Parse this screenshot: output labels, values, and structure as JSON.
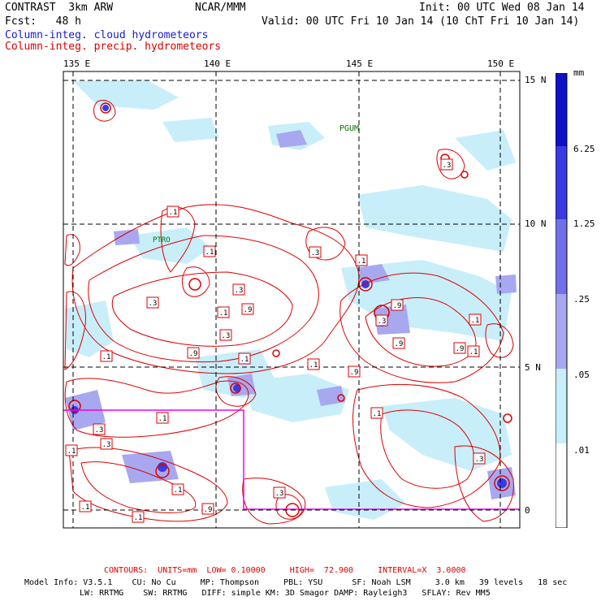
{
  "header": {
    "model": "CONTRAST  3km ARW",
    "org": "NCAR/MMM",
    "init": "Init: 00 UTC Wed 08 Jan 14",
    "fcst": "Fcst:   48 h",
    "valid": "Valid: 00 UTC Fri 10 Jan 14 (10 ChT Fri 10 Jan 14)",
    "field_blue": "Column-integ. cloud hydrometeors",
    "field_red": "Column-integ. precip. hydrometeors"
  },
  "map": {
    "lon_labels": [
      "135 E",
      "140 E",
      "145 E",
      "150 E"
    ],
    "lat_labels": [
      "15 N",
      "10 N",
      "5 N",
      "0"
    ],
    "place_labels": [
      "PGUM",
      "PTRO"
    ],
    "contour_labels": [
      ".1",
      ".1",
      ".3",
      ".9",
      ".3",
      ".1",
      ".9",
      ".1",
      ".3",
      ".1",
      ".9",
      ".1",
      ".9",
      ".3",
      ".1",
      ".1",
      ".3",
      ".9",
      ".3",
      ".1",
      ".3",
      ".9",
      ".1",
      ".3",
      ".9",
      ".1",
      ".1",
      ".3",
      ".1",
      ".3",
      ".1",
      ".1"
    ],
    "colors": {
      "grid": "#000000",
      "contour": "#dd0000",
      "box": "#ee00ee",
      "station": "#007700"
    }
  },
  "colorbar": {
    "unit": "mm",
    "labels": [
      "6.25",
      "1.25",
      ".25",
      ".05",
      ".01"
    ],
    "colors": [
      "#1010c8",
      "#3a3ae0",
      "#7070e8",
      "#a8a8f0",
      "#c8eefa",
      "#e6f8fc",
      "#ffffff"
    ]
  },
  "footer": {
    "contours": "CONTOURS:  UNITS=mm  LOW= 0.10000     HIGH=  72.900     INTERVAL=X  3.0000",
    "line1": "Model Info: V3.5.1    CU: No Cu     MP: Thompson     PBL: YSU      SF: Noah LSM     3.0 km   39 levels   18 sec",
    "line2": "LW: RRTMG    SW: RRTMG   DIFF: simple KM: 3D Smagor DAMP: Rayleigh3   SFLAY: Rev MM5"
  }
}
